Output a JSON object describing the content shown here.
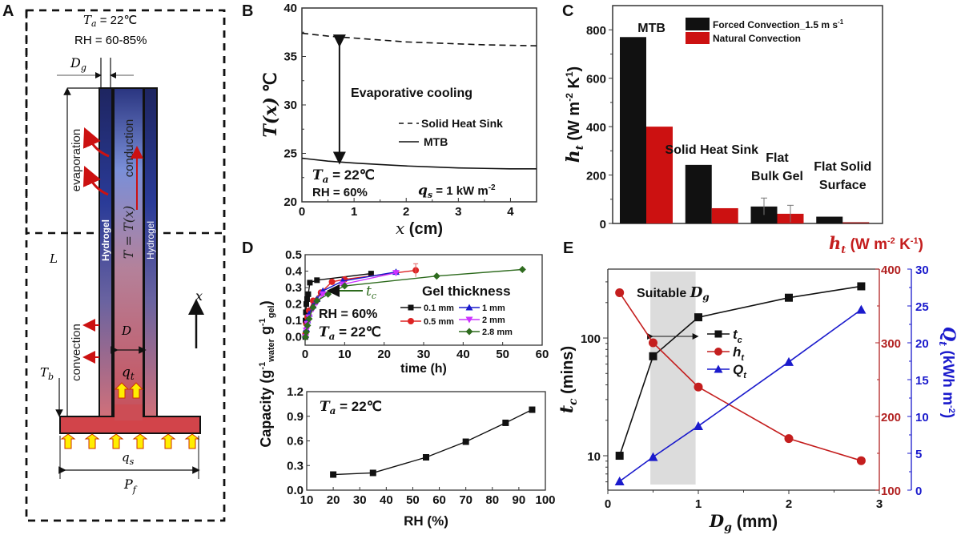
{
  "panels": {
    "A": {
      "letter": "A",
      "ambient_temp": "T_a = 22℃",
      "ambient_temp_sym": "T",
      "ambient_temp_sub": "a",
      "ambient_temp_val": " = 22℃",
      "rh_range": "RH = 60-85%",
      "dg_label": "D",
      "dg_sub": "g",
      "evaporation": "evaporation",
      "conduction": "conduction",
      "hydrogel_left": "Hydrogel",
      "hydrogel_right": "Hydrogel",
      "temp_profile": "T = T(x)",
      "length_label": "L",
      "x_axis_label": "x",
      "convection": "convection",
      "diameter_label": "D",
      "tb_label": "T",
      "tb_sub": "b",
      "qt_label": "q",
      "qt_sub": "t",
      "qs_label": "q",
      "qs_sub": "s",
      "pf_label": "P",
      "pf_sub": "f"
    },
    "B": {
      "letter": "B"
    },
    "C": {
      "letter": "C"
    },
    "D": {
      "letter": "D"
    },
    "E": {
      "letter": "E"
    }
  },
  "colors": {
    "black": "#111111",
    "red": "#cc1111",
    "blue": "#1a1acc",
    "magenta": "#cc33ff",
    "green": "#2e6b1e",
    "dark_red_axis": "#b22222",
    "shade": "#dcdcdc"
  },
  "chart_data": [
    {
      "id": "B",
      "type": "line",
      "title": "",
      "xlabel": "x (cm)",
      "ylabel": "T(x) ℃",
      "xlim": [
        0,
        4.5
      ],
      "ylim": [
        20,
        40
      ],
      "xticks": [
        0,
        1,
        2,
        3,
        4
      ],
      "yticks": [
        20,
        25,
        30,
        35,
        40
      ],
      "series": [
        {
          "name": "Solid Heat Sink",
          "style": "dashed",
          "x": [
            0,
            0.5,
            1,
            1.5,
            2,
            2.5,
            3,
            3.5,
            4,
            4.5
          ],
          "y": [
            37.4,
            37.1,
            36.9,
            36.7,
            36.5,
            36.4,
            36.3,
            36.2,
            36.15,
            36.1
          ]
        },
        {
          "name": "MTB",
          "style": "solid",
          "x": [
            0,
            0.5,
            1,
            1.5,
            2,
            2.5,
            3,
            3.5,
            4,
            4.5
          ],
          "y": [
            24.5,
            24.2,
            24.0,
            23.85,
            23.7,
            23.6,
            23.5,
            23.45,
            23.4,
            23.4
          ]
        }
      ],
      "annotations": {
        "evap_cooling": "Evaporative cooling",
        "ta_sym": "T",
        "ta_sub": "a",
        "ta_val": " = 22℃",
        "rh": "RH = 60%",
        "qs_sym": "q",
        "qs_sub": "s",
        "qs_val": " = 1 kW m",
        "qs_exp": "-2"
      },
      "legend": {
        "placement": "right-middle",
        "entries": [
          "Solid Heat Sink",
          "MTB"
        ]
      }
    },
    {
      "id": "C",
      "type": "bar",
      "title": "",
      "ylabel": "h_t (W m-2 K1)",
      "ylabel_sym": "h",
      "ylabel_sub": "t",
      "ylabel_rest": " (W m",
      "ylabel_exp1": "-2",
      "ylabel_k": " K",
      "ylabel_exp2": "1",
      "ylabel_close": ")",
      "ylim": [
        0,
        900
      ],
      "yticks": [
        0,
        200,
        400,
        600,
        800
      ],
      "categories": [
        "MTB",
        "Solid Heat Sink",
        "Flat Bulk Gel",
        "Flat Solid Surface"
      ],
      "category_labels": [
        [
          "MTB"
        ],
        [
          "Solid Heat Sink"
        ],
        [
          "Flat",
          "Bulk Gel"
        ],
        [
          "Flat Solid",
          "Surface"
        ]
      ],
      "series": [
        {
          "name": "Forced Convection_1.5 m s-1",
          "legend_text": "Forced Convection_1.5 m s",
          "legend_exp": "-1",
          "values": [
            770,
            242,
            70,
            28
          ],
          "errors": [
            0,
            0,
            35,
            0
          ]
        },
        {
          "name": "Natural Convection",
          "legend_text": "Natural Convection",
          "values": [
            400,
            63,
            40,
            5
          ],
          "errors": [
            0,
            0,
            35,
            0
          ]
        }
      ],
      "legend": {
        "placement": "top-right"
      }
    },
    {
      "id": "D-top",
      "type": "line",
      "xlabel": "time (h)",
      "ylabel": "Capacity (g-1 water g-1 gel)",
      "xlim": [
        0,
        60
      ],
      "ylim": [
        -0.05,
        0.5
      ],
      "xticks": [
        0,
        10,
        20,
        30,
        40,
        50,
        60
      ],
      "yticks": [
        0.0,
        0.1,
        0.2,
        0.3,
        0.4,
        0.5
      ],
      "series": [
        {
          "name": "0.1 mm",
          "marker": "square",
          "x": [
            0.05,
            0.1,
            0.2,
            0.3,
            0.5,
            0.8,
            1.2,
            3,
            16.7
          ],
          "y": [
            0.0,
            0.1,
            0.15,
            0.2,
            0.23,
            0.26,
            0.33,
            0.345,
            0.385
          ]
        },
        {
          "name": "0.5 mm",
          "marker": "circle",
          "x": [
            0.1,
            0.3,
            0.6,
            1,
            2,
            4,
            6.8,
            10,
            28
          ],
          "y": [
            0.02,
            0.08,
            0.12,
            0.16,
            0.22,
            0.27,
            0.335,
            0.35,
            0.405
          ]
        },
        {
          "name": "1 mm",
          "marker": "triangle-up",
          "x": [
            0.1,
            0.3,
            0.6,
            1,
            2,
            3,
            4.5,
            9.5,
            23
          ],
          "y": [
            0.01,
            0.05,
            0.1,
            0.14,
            0.19,
            0.23,
            0.28,
            0.34,
            0.395
          ]
        },
        {
          "name": "2 mm",
          "marker": "triangle-down",
          "x": [
            0.1,
            0.3,
            0.6,
            1,
            2,
            3,
            4.5,
            9.5,
            23
          ],
          "y": [
            0.0,
            0.04,
            0.08,
            0.12,
            0.17,
            0.21,
            0.26,
            0.32,
            0.39
          ]
        },
        {
          "name": "2.8 mm",
          "marker": "diamond",
          "x": [
            0.1,
            0.3,
            0.6,
            1,
            2,
            3,
            5.8,
            10,
            33.3,
            55
          ],
          "y": [
            0.0,
            0.03,
            0.07,
            0.11,
            0.18,
            0.22,
            0.26,
            0.31,
            0.37,
            0.41
          ]
        }
      ],
      "errors_05mm_last": 0.04,
      "annotations": {
        "tc_sym": "t",
        "tc_sub": "c",
        "rh": "RH = 60%",
        "ta_sym": "T",
        "ta_sub": "a",
        "ta_val": " = 22℃"
      },
      "legend": {
        "title": "Gel thickness",
        "placement": "bottom-right",
        "entries": [
          "0.1 mm",
          "0.5 mm",
          "1 mm",
          "2 mm",
          "2.8 mm"
        ]
      }
    },
    {
      "id": "D-bottom",
      "type": "line",
      "xlabel": "RH (%)",
      "ylabel": "Capacity (g-1 water g-1 gel)",
      "ylabel_parts": {
        "cap": "Capacity",
        "g1": "(g",
        "e1": "-1",
        "s1": "water",
        "g2": " g",
        "e2": "-1",
        "s2": "gel",
        "close": ")"
      },
      "xlim": [
        10,
        100
      ],
      "ylim": [
        0,
        1.2
      ],
      "xticks": [
        10,
        20,
        30,
        40,
        50,
        60,
        70,
        80,
        90,
        100
      ],
      "yticks": [
        0.0,
        0.3,
        0.6,
        0.9,
        1.2
      ],
      "series": [
        {
          "name": "Capacity",
          "marker": "square",
          "x": [
            20,
            35,
            55,
            70,
            85,
            95
          ],
          "y": [
            0.19,
            0.21,
            0.4,
            0.59,
            0.82,
            0.98
          ]
        }
      ],
      "annotations": {
        "ta_sym": "T",
        "ta_sub": "a",
        "ta_val": " = 22℃"
      }
    },
    {
      "id": "E",
      "type": "line",
      "xlabel": "D_g (mm)",
      "xlabel_sym": "D",
      "xlabel_sub": "g",
      "xlabel_rest": " (mm)",
      "ylabel_left": "t_c (mins)",
      "ylabel_left_sym": "t",
      "ylabel_left_sub": "c",
      "ylabel_left_rest": " (mins)",
      "ylabel_right1": "h_t (W m-2 K-1)",
      "ylabel_right1_parts": {
        "sym": "h",
        "sub": "t",
        "rest": " (W m",
        "e1": "-2",
        "k": " K",
        "e2": "-1",
        "close": ")"
      },
      "ylabel_right2": "Q_t (kWh m-2)",
      "ylabel_right2_parts": {
        "sym": "Q",
        "sub": "t",
        "rest": " (kWh m",
        "e": "-2",
        "close": ")"
      },
      "xlim": [
        0,
        3
      ],
      "ylim_left_log": [
        5.1,
        385
      ],
      "ylim_right1": [
        100,
        400
      ],
      "ylim_right2": [
        0,
        30
      ],
      "xticks": [
        0,
        1,
        2,
        3
      ],
      "yticks_left": [
        10,
        100
      ],
      "yticks_right1": [
        100,
        200,
        300,
        400
      ],
      "yticks_right2": [
        0,
        5,
        10,
        15,
        20,
        25,
        30
      ],
      "shaded_region": {
        "x": [
          0.47,
          0.97
        ],
        "label_text": "Suitable ",
        "label_sym": "D",
        "label_sub": "g"
      },
      "series": [
        {
          "name": "t_c",
          "legend_sym": "t",
          "legend_sub": "c",
          "axis": "left",
          "marker": "square",
          "x": [
            0.13,
            0.5,
            1,
            2,
            2.8
          ],
          "y": [
            10,
            70,
            150,
            220,
            275
          ]
        },
        {
          "name": "h_t",
          "legend_sym": "h",
          "legend_sub": "t",
          "axis": "right1",
          "marker": "circle",
          "x": [
            0.13,
            0.5,
            1,
            2,
            2.8
          ],
          "y": [
            368,
            300,
            240,
            170,
            140
          ]
        },
        {
          "name": "Q_t",
          "legend_sym": "Q",
          "legend_sub": "t",
          "axis": "right2",
          "marker": "triangle-up",
          "x": [
            0.13,
            0.5,
            1,
            2,
            2.8
          ],
          "y": [
            1.2,
            4.5,
            8.7,
            17.4,
            24.5
          ]
        }
      ],
      "legend": {
        "placement": "center"
      }
    }
  ]
}
